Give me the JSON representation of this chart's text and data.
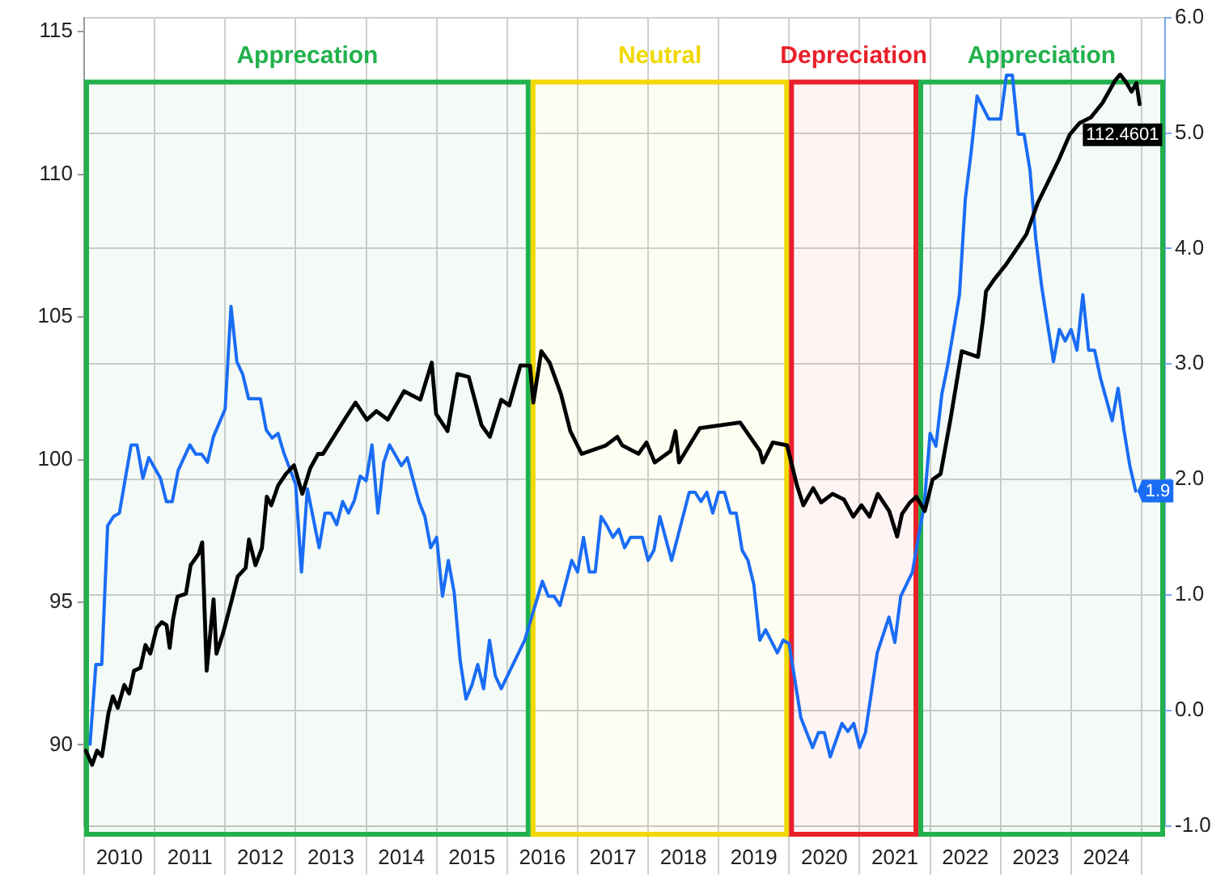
{
  "chart_data": {
    "type": "line",
    "xlim": [
      "2010-01-01",
      "2025-05-01"
    ],
    "xticks": [
      {
        "value": "2010-01-01",
        "label": null
      },
      {
        "value": "2010-07-01",
        "label": "2010"
      },
      {
        "value": "2011-01-01",
        "label": null
      },
      {
        "value": "2011-07-01",
        "label": "2011"
      },
      {
        "value": "2012-01-01",
        "label": null
      },
      {
        "value": "2012-07-01",
        "label": "2012"
      },
      {
        "value": "2013-01-01",
        "label": null
      },
      {
        "value": "2013-07-01",
        "label": "2013"
      },
      {
        "value": "2014-01-01",
        "label": null
      },
      {
        "value": "2014-07-01",
        "label": "2014"
      },
      {
        "value": "2015-01-01",
        "label": null
      },
      {
        "value": "2015-07-01",
        "label": "2015"
      },
      {
        "value": "2016-01-01",
        "label": null
      },
      {
        "value": "2016-07-01",
        "label": "2016"
      },
      {
        "value": "2017-01-01",
        "label": null
      },
      {
        "value": "2017-07-01",
        "label": "2017"
      },
      {
        "value": "2018-01-01",
        "label": null
      },
      {
        "value": "2018-07-01",
        "label": "2018"
      },
      {
        "value": "2019-01-01",
        "label": null
      },
      {
        "value": "2019-07-01",
        "label": "2019"
      },
      {
        "value": "2020-01-01",
        "label": null
      },
      {
        "value": "2020-07-01",
        "label": "2020"
      },
      {
        "value": "2021-01-01",
        "label": null
      },
      {
        "value": "2021-07-01",
        "label": "2021"
      },
      {
        "value": "2022-01-01",
        "label": null
      },
      {
        "value": "2022-07-01",
        "label": "2022"
      },
      {
        "value": "2023-01-01",
        "label": null
      },
      {
        "value": "2023-07-01",
        "label": "2023"
      },
      {
        "value": "2024-01-01",
        "label": null
      },
      {
        "value": "2024-07-01",
        "label": "2024"
      },
      {
        "value": "2025-01-01",
        "label": null
      }
    ],
    "ylim": [
      87.15,
      115.5
    ],
    "yticks": [
      90,
      95,
      100,
      105,
      110,
      115
    ],
    "y2lim": [
      -1.0,
      6.0
    ],
    "y2ticks": [
      {
        "value": -1,
        "label": "-1.0"
      },
      {
        "value": 0,
        "label": "0.0"
      },
      {
        "value": 1,
        "label": "1.0"
      },
      {
        "value": 2,
        "label": "2.0"
      },
      {
        "value": 3,
        "label": "3.0"
      },
      {
        "value": 4,
        "label": "4.0"
      },
      {
        "value": 5,
        "label": "5.0"
      },
      {
        "value": 6,
        "label": "6.0"
      }
    ],
    "grid": true,
    "bands": [
      {
        "axis": "x",
        "from": "2010-01-01",
        "to": "2016-05-01",
        "label": "Apprecation",
        "color": "#22b14c"
      },
      {
        "axis": "x",
        "from": "2016-05-01",
        "to": "2020-01-01",
        "label": "Neutral",
        "color": "#f0d800"
      },
      {
        "axis": "x",
        "from": "2020-01-01",
        "to": "2021-11-01",
        "label": "Depreciation",
        "color": "#e8202a"
      },
      {
        "axis": "x",
        "from": "2021-11-01",
        "to": "2025-05-01",
        "label": "Appreciation",
        "color": "#22b14c"
      }
    ],
    "series": [
      {
        "color": "#000000",
        "axis": "y",
        "x": [
          "2010-01-09",
          "2010-02-12",
          "2010-03-07",
          "2010-04-02",
          "2010-05-05",
          "2010-05-28",
          "2010-06-23",
          "2010-07-26",
          "2010-08-21",
          "2010-09-16",
          "2010-10-19",
          "2010-11-14",
          "2010-12-09",
          "2011-01-12",
          "2011-02-07",
          "2011-03-02",
          "2011-03-18",
          "2011-04-05",
          "2011-04-28",
          "2011-06-11",
          "2011-07-05",
          "2011-08-16",
          "2011-09-04",
          "2011-09-27",
          "2011-11-02",
          "2011-11-17",
          "2011-12-20",
          "2012-02-02",
          "2012-03-05",
          "2012-04-16",
          "2012-05-03",
          "2012-06-06",
          "2012-07-09",
          "2012-08-04",
          "2012-08-27",
          "2012-10-02",
          "2012-11-12",
          "2012-12-23",
          "2013-02-05",
          "2013-03-16",
          "2013-04-26",
          "2013-05-21",
          "2013-09-10",
          "2013-11-07",
          "2014-01-05",
          "2014-02-24",
          "2014-04-22",
          "2014-07-15",
          "2014-10-08",
          "2014-12-06",
          "2014-12-29",
          "2015-02-27",
          "2015-04-17",
          "2015-06-15",
          "2015-08-21",
          "2015-10-03",
          "2015-12-01",
          "2016-01-12",
          "2016-03-09",
          "2016-04-28",
          "2016-05-15",
          "2016-06-26",
          "2016-08-08",
          "2016-10-06",
          "2016-11-24",
          "2017-01-22",
          "2017-05-26",
          "2017-07-24",
          "2017-08-19",
          "2017-11-12",
          "2017-12-23",
          "2018-02-05",
          "2018-04-26",
          "2018-05-21",
          "2018-06-09",
          "2018-09-25",
          "2019-04-21",
          "2019-08-02",
          "2019-08-17",
          "2019-10-08",
          "2019-12-21",
          "2020-02-11",
          "2020-03-14",
          "2020-05-04",
          "2020-06-15",
          "2020-08-13",
          "2020-10-11",
          "2020-11-29",
          "2021-01-11",
          "2021-02-22",
          "2021-04-04",
          "2021-06-02",
          "2021-07-13",
          "2021-08-08",
          "2021-09-19",
          "2021-10-21",
          "2021-12-04",
          "2022-01-14",
          "2022-02-25",
          "2022-04-15",
          "2022-06-13",
          "2022-09-06",
          "2022-10-01",
          "2022-10-17",
          "2022-11-27",
          "2023-01-25",
          "2023-03-15",
          "2023-05-13",
          "2023-07-11",
          "2023-09-01",
          "2023-10-28",
          "2023-12-25",
          "2024-02-15",
          "2024-04-13",
          "2024-06-11",
          "2024-08-17",
          "2024-09-12",
          "2024-10-15",
          "2024-11-10",
          "2024-12-05",
          "2024-12-21"
        ],
        "values": [
          89.8,
          89.3,
          89.8,
          89.6,
          91.1,
          91.7,
          91.3,
          92.1,
          91.8,
          92.6,
          92.7,
          93.5,
          93.2,
          94.1,
          94.3,
          94.2,
          93.4,
          94.4,
          95.2,
          95.3,
          96.3,
          96.7,
          97.1,
          92.6,
          95.1,
          93.2,
          93.9,
          95.0,
          95.9,
          96.2,
          97.2,
          96.3,
          96.9,
          98.7,
          98.4,
          99.1,
          99.5,
          99.8,
          98.8,
          99.7,
          100.2,
          100.2,
          101.4,
          102.0,
          101.4,
          101.7,
          101.4,
          102.4,
          102.1,
          103.4,
          101.6,
          101.0,
          103.0,
          102.9,
          101.2,
          100.8,
          102.1,
          101.9,
          103.3,
          103.3,
          102.0,
          103.8,
          103.4,
          102.3,
          101.0,
          100.2,
          100.5,
          100.8,
          100.5,
          100.2,
          100.6,
          99.9,
          100.3,
          101.0,
          99.9,
          101.1,
          101.3,
          100.3,
          99.9,
          100.6,
          100.5,
          99.1,
          98.4,
          99.0,
          98.5,
          98.8,
          98.6,
          98.0,
          98.4,
          98.0,
          98.8,
          98.2,
          97.3,
          98.1,
          98.5,
          98.7,
          98.2,
          99.3,
          99.5,
          101.4,
          103.8,
          103.6,
          104.9,
          105.9,
          106.3,
          106.8,
          107.3,
          107.9,
          109.0,
          109.7,
          110.5,
          111.4,
          111.8,
          112.0,
          112.5,
          113.3,
          113.5,
          113.2,
          112.9,
          113.2,
          112.4601
        ],
        "value_labels": [
          null,
          null,
          null,
          null,
          null,
          null,
          null,
          null,
          null,
          null,
          null,
          null,
          null,
          null,
          null,
          null,
          null,
          null,
          null,
          null,
          null,
          null,
          null,
          null,
          null,
          null,
          null,
          null,
          null,
          null,
          null,
          null,
          null,
          null,
          null,
          null,
          null,
          null,
          null,
          null,
          null,
          null,
          null,
          null,
          null,
          null,
          null,
          null,
          null,
          null,
          null,
          null,
          null,
          null,
          null,
          null,
          null,
          null,
          null,
          null,
          null,
          null,
          null,
          null,
          null,
          null,
          null,
          null,
          null,
          null,
          null,
          null,
          null,
          null,
          null,
          null,
          null,
          null,
          null,
          null,
          null,
          null,
          null,
          null,
          null,
          null,
          null,
          null,
          null,
          null,
          null,
          null,
          null,
          null,
          null,
          null,
          null,
          null,
          null,
          null,
          null,
          null,
          null,
          null,
          null,
          null,
          null,
          null,
          null,
          null,
          null,
          null,
          null,
          null,
          null,
          null,
          null,
          null,
          null,
          null,
          "112.4601"
        ]
      },
      {
        "color": "#1a6cf5",
        "axis": "y2",
        "x": [
          "2010-02",
          "2010-03",
          "2010-04",
          "2010-05",
          "2010-06",
          "2010-07",
          "2010-09",
          "2010-10",
          "2010-11",
          "2010-12",
          "2011-02",
          "2011-03",
          "2011-04",
          "2011-05",
          "2011-07",
          "2011-08",
          "2011-09",
          "2011-10",
          "2011-11",
          "2012-01",
          "2012-02",
          "2012-03",
          "2012-04",
          "2012-05",
          "2012-07",
          "2012-08",
          "2012-09",
          "2012-10",
          "2012-11",
          "2013-01",
          "2013-02",
          "2013-03",
          "2013-05",
          "2013-06",
          "2013-07",
          "2013-08",
          "2013-09",
          "2013-10",
          "2013-11",
          "2013-12",
          "2014-01",
          "2014-02",
          "2014-03",
          "2014-04",
          "2014-05",
          "2014-07",
          "2014-08",
          "2014-10",
          "2014-11",
          "2014-12",
          "2015-01",
          "2015-02",
          "2015-03",
          "2015-04",
          "2015-05",
          "2015-06",
          "2015-07",
          "2015-08",
          "2015-09",
          "2015-10",
          "2015-11",
          "2015-12",
          "2016-04",
          "2016-06",
          "2016-07",
          "2016-08",
          "2016-09",
          "2016-10",
          "2016-12",
          "2017-01",
          "2017-02",
          "2017-03",
          "2017-04",
          "2017-05",
          "2017-06",
          "2017-07",
          "2017-08",
          "2017-09",
          "2017-10",
          "2017-12",
          "2018-01",
          "2018-02",
          "2018-03",
          "2018-05",
          "2018-08",
          "2018-09",
          "2018-10",
          "2018-11",
          "2018-12",
          "2019-01",
          "2019-02",
          "2019-03",
          "2019-04",
          "2019-05",
          "2019-06",
          "2019-07",
          "2019-08",
          "2019-09",
          "2019-11",
          "2019-12",
          "2020-01",
          "2020-03",
          "2020-05",
          "2020-06",
          "2020-07",
          "2020-08",
          "2020-10",
          "2020-11",
          "2020-12",
          "2021-01",
          "2021-02",
          "2021-04",
          "2021-06",
          "2021-07",
          "2021-08",
          "2021-10",
          "2021-11",
          "2021-12",
          "2022-01",
          "2022-02",
          "2022-03",
          "2022-04",
          "2022-06",
          "2022-07",
          "2022-08",
          "2022-09",
          "2022-11",
          "2023-01",
          "2023-02",
          "2023-03",
          "2023-04",
          "2023-05",
          "2023-06",
          "2023-07",
          "2023-08",
          "2023-10",
          "2023-11",
          "2023-12",
          "2024-01",
          "2024-02",
          "2024-03",
          "2024-04",
          "2024-05",
          "2024-06",
          "2024-08",
          "2024-09",
          "2024-10",
          "2024-11",
          "2024-12"
        ],
        "values": [
          -0.29,
          0.4,
          0.4,
          1.6,
          1.68,
          1.71,
          2.3,
          2.3,
          2.01,
          2.19,
          2.01,
          1.81,
          1.81,
          2.08,
          2.3,
          2.22,
          2.22,
          2.15,
          2.37,
          2.61,
          3.5,
          3.02,
          2.91,
          2.7,
          2.7,
          2.43,
          2.36,
          2.4,
          2.23,
          1.96,
          1.2,
          1.92,
          1.41,
          1.71,
          1.71,
          1.61,
          1.81,
          1.71,
          1.82,
          2.03,
          1.99,
          2.3,
          1.71,
          2.15,
          2.3,
          2.12,
          2.19,
          1.81,
          1.68,
          1.41,
          1.5,
          0.99,
          1.3,
          1.02,
          0.44,
          0.1,
          0.22,
          0.4,
          0.19,
          0.61,
          0.3,
          0.19,
          0.61,
          0.95,
          1.12,
          0.99,
          0.99,
          0.91,
          1.3,
          1.2,
          1.5,
          1.2,
          1.2,
          1.68,
          1.6,
          1.5,
          1.57,
          1.41,
          1.5,
          1.5,
          1.3,
          1.39,
          1.68,
          1.3,
          1.89,
          1.89,
          1.81,
          1.89,
          1.71,
          1.89,
          1.89,
          1.71,
          1.71,
          1.39,
          1.3,
          1.09,
          0.61,
          0.7,
          0.5,
          0.61,
          0.58,
          -0.06,
          -0.32,
          -0.19,
          -0.19,
          -0.4,
          -0.11,
          -0.18,
          -0.11,
          -0.32,
          -0.19,
          0.5,
          0.81,
          0.59,
          0.99,
          1.2,
          1.5,
          1.78,
          2.4,
          2.29,
          2.74,
          2.99,
          3.6,
          4.43,
          4.84,
          5.32,
          5.12,
          5.12,
          5.5,
          5.5,
          4.99,
          4.99,
          4.68,
          4.08,
          3.67,
          3.02,
          3.3,
          3.2,
          3.3,
          3.12,
          3.6,
          3.12,
          3.12,
          2.88,
          2.51,
          2.79,
          2.43,
          2.12,
          1.9
        ],
        "value_labels": [
          null,
          null,
          null,
          null,
          null,
          null,
          null,
          null,
          null,
          null,
          null,
          null,
          null,
          null,
          null,
          null,
          null,
          null,
          null,
          null,
          null,
          null,
          null,
          null,
          null,
          null,
          null,
          null,
          null,
          null,
          null,
          null,
          null,
          null,
          null,
          null,
          null,
          null,
          null,
          null,
          null,
          null,
          null,
          null,
          null,
          null,
          null,
          null,
          null,
          null,
          null,
          null,
          null,
          null,
          null,
          null,
          null,
          null,
          null,
          null,
          null,
          null,
          null,
          null,
          null,
          null,
          null,
          null,
          null,
          null,
          null,
          null,
          null,
          null,
          null,
          null,
          null,
          null,
          null,
          null,
          null,
          null,
          null,
          null,
          null,
          null,
          null,
          null,
          null,
          null,
          null,
          null,
          null,
          null,
          null,
          null,
          null,
          null,
          null,
          null,
          null,
          null,
          null,
          null,
          null,
          null,
          null,
          null,
          null,
          null,
          null,
          null,
          null,
          null,
          null,
          null,
          null,
          null,
          null,
          null,
          null,
          null,
          null,
          null,
          null,
          null,
          null,
          null,
          null,
          null,
          null,
          null,
          null,
          null,
          null,
          null,
          null,
          null,
          null,
          null,
          null,
          null,
          null,
          null,
          null,
          null,
          null,
          null,
          "1.9"
        ]
      }
    ]
  }
}
